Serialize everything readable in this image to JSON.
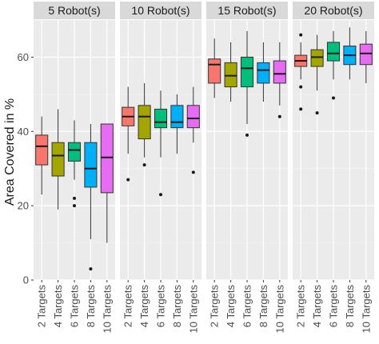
{
  "chart_data": {
    "type": "boxplot",
    "ylabel": "Area Covered in %",
    "xlabel": "",
    "ylim": [
      0,
      70
    ],
    "y_ticks": [
      0,
      20,
      40,
      60
    ],
    "grid": true,
    "categories": [
      "2 Targets",
      "4 Targets",
      "6 Targets",
      "8 Targets",
      "10 Targets"
    ],
    "colors": [
      "#f8766d",
      "#a3a500",
      "#00bf7d",
      "#00b0f6",
      "#e76bf3"
    ],
    "facets": [
      {
        "label": "5 Robot(s)",
        "boxes": [
          {
            "min": 23,
            "q1": 31,
            "median": 36,
            "q3": 39,
            "max": 44,
            "outliers": []
          },
          {
            "min": 19,
            "q1": 28,
            "median": 33.5,
            "q3": 37,
            "max": 46,
            "outliers": []
          },
          {
            "min": 27,
            "q1": 32,
            "median": 35,
            "q3": 37,
            "max": 43,
            "outliers": [
              22,
              20
            ]
          },
          {
            "min": 11,
            "q1": 25,
            "median": 30,
            "q3": 37,
            "max": 42,
            "outliers": [
              3
            ]
          },
          {
            "min": 10,
            "q1": 23.5,
            "median": 33,
            "q3": 42,
            "max": 42,
            "outliers": []
          }
        ]
      },
      {
        "label": "10 Robot(s)",
        "boxes": [
          {
            "min": 34,
            "q1": 41.5,
            "median": 44,
            "q3": 46.5,
            "max": 52,
            "outliers": [
              27
            ]
          },
          {
            "min": 33,
            "q1": 38,
            "median": 44,
            "q3": 47,
            "max": 53,
            "outliers": [
              31
            ]
          },
          {
            "min": 33,
            "q1": 41,
            "median": 42.5,
            "q3": 46,
            "max": 51,
            "outliers": [
              23
            ]
          },
          {
            "min": 34,
            "q1": 41,
            "median": 42.5,
            "q3": 47,
            "max": 50,
            "outliers": []
          },
          {
            "min": 37,
            "q1": 41,
            "median": 43.5,
            "q3": 47,
            "max": 52,
            "outliers": [
              29
            ]
          }
        ]
      },
      {
        "label": "15 Robot(s)",
        "boxes": [
          {
            "min": 49,
            "q1": 53,
            "median": 58,
            "q3": 59.5,
            "max": 65,
            "outliers": []
          },
          {
            "min": 48,
            "q1": 52,
            "median": 55,
            "q3": 58.5,
            "max": 64,
            "outliers": []
          },
          {
            "min": 42,
            "q1": 52,
            "median": 57,
            "q3": 60,
            "max": 67,
            "outliers": [
              39
            ]
          },
          {
            "min": 48,
            "q1": 53,
            "median": 56.5,
            "q3": 58.5,
            "max": 64,
            "outliers": []
          },
          {
            "min": 47,
            "q1": 53,
            "median": 55.5,
            "q3": 59,
            "max": 64,
            "outliers": [
              44
            ]
          }
        ]
      },
      {
        "label": "20 Robot(s)",
        "boxes": [
          {
            "min": 54,
            "q1": 57.5,
            "median": 59,
            "q3": 60.5,
            "max": 64,
            "outliers": [
              66,
              52,
              46
            ]
          },
          {
            "min": 51,
            "q1": 57.5,
            "median": 60,
            "q3": 62,
            "max": 66,
            "outliers": [
              45
            ]
          },
          {
            "min": 54,
            "q1": 59,
            "median": 61,
            "q3": 64,
            "max": 67,
            "outliers": [
              49
            ]
          },
          {
            "min": 54,
            "q1": 58,
            "median": 60.5,
            "q3": 63,
            "max": 68,
            "outliers": []
          },
          {
            "min": 53,
            "q1": 58,
            "median": 61,
            "q3": 63.5,
            "max": 67,
            "outliers": []
          }
        ]
      }
    ]
  }
}
